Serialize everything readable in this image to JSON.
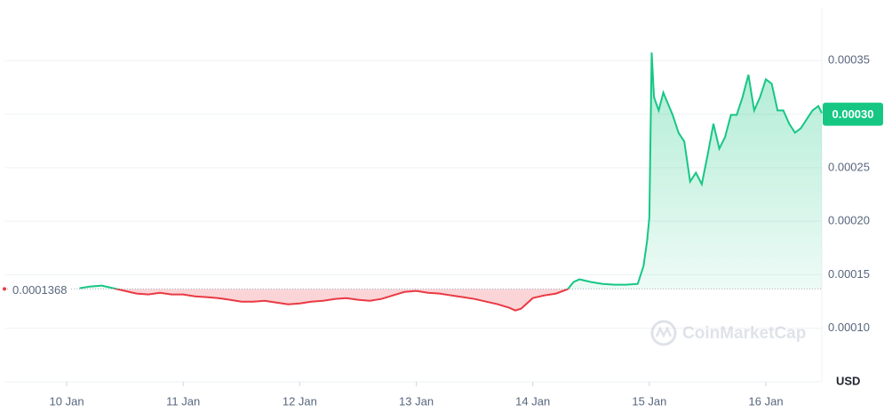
{
  "chart_data": {
    "type": "baseline-line",
    "x": [
      10.11,
      10.2,
      10.3,
      10.4,
      10.5,
      10.6,
      10.7,
      10.8,
      10.9,
      11.0,
      11.1,
      11.2,
      11.3,
      11.4,
      11.5,
      11.6,
      11.7,
      11.8,
      11.9,
      12.0,
      12.1,
      12.2,
      12.3,
      12.4,
      12.5,
      12.6,
      12.7,
      12.8,
      12.9,
      13.0,
      13.1,
      13.2,
      13.3,
      13.4,
      13.5,
      13.6,
      13.7,
      13.8,
      13.85,
      13.9,
      14.0,
      14.1,
      14.2,
      14.3,
      14.35,
      14.4,
      14.5,
      14.6,
      14.7,
      14.8,
      14.9,
      14.95,
      14.98,
      15.0,
      15.02,
      15.04,
      15.08,
      15.12,
      15.2,
      15.25,
      15.3,
      15.35,
      15.4,
      15.45,
      15.5,
      15.55,
      15.6,
      15.65,
      15.7,
      15.75,
      15.8,
      15.85,
      15.9,
      15.95,
      16.0,
      16.05,
      16.1,
      16.15,
      16.2,
      16.25,
      16.3,
      16.35,
      16.4,
      16.45,
      16.48
    ],
    "values": [
      0.0001374,
      0.000139,
      0.0001399,
      0.0001374,
      0.0001349,
      0.0001324,
      0.0001316,
      0.0001332,
      0.0001316,
      0.0001316,
      0.0001299,
      0.0001291,
      0.0001282,
      0.0001266,
      0.0001249,
      0.0001249,
      0.0001257,
      0.0001241,
      0.0001224,
      0.0001232,
      0.0001249,
      0.0001257,
      0.0001274,
      0.0001282,
      0.0001266,
      0.0001257,
      0.0001274,
      0.0001307,
      0.000134,
      0.0001349,
      0.0001332,
      0.0001324,
      0.0001307,
      0.0001291,
      0.0001274,
      0.0001249,
      0.0001224,
      0.0001191,
      0.0001166,
      0.0001183,
      0.0001282,
      0.0001307,
      0.0001324,
      0.0001366,
      0.0001432,
      0.0001457,
      0.0001432,
      0.0001415,
      0.0001407,
      0.0001407,
      0.0001415,
      0.0001581,
      0.0001814,
      0.0002038,
      0.0003575,
      0.000316,
      0.0003035,
      0.0003201,
      0.0002993,
      0.0002827,
      0.0002744,
      0.000237,
      0.0002453,
      0.0002345,
      0.000262,
      0.000291,
      0.0002678,
      0.0002786,
      0.0002993,
      0.0002993,
      0.000316,
      0.0003367,
      0.0003035,
      0.000316,
      0.0003326,
      0.0003284,
      0.0003035,
      0.0003035,
      0.000291,
      0.0002827,
      0.0002869,
      0.0002952,
      0.0003035,
      0.0003076,
      0.000301
    ],
    "baseline": 0.0001368,
    "up_color": "#16c784",
    "down_color": "#ea3943",
    "last_price": {
      "value": 0.0003,
      "label": "0.00030"
    },
    "xlim": [
      9.466,
      16.48
    ],
    "xticks": [
      {
        "value": 10,
        "label": "10 Jan"
      },
      {
        "value": 11,
        "label": "11 Jan"
      },
      {
        "value": 12,
        "label": "12 Jan"
      },
      {
        "value": 13,
        "label": "13 Jan"
      },
      {
        "value": 14,
        "label": "14 Jan"
      },
      {
        "value": 15,
        "label": "15 Jan"
      },
      {
        "value": 16,
        "label": "16 Jan"
      }
    ],
    "ylim": [
      5e-05,
      0.0004
    ],
    "yticks": [
      {
        "value": 0.0001,
        "label": "0.00010"
      },
      0.00015,
      {
        "value": 0.0002,
        "label": "0.00020"
      },
      0.00025,
      {
        "value": 0.0003,
        "label": "0.00030"
      },
      0.00035
    ],
    "grid": true,
    "currency_label": "USD",
    "watermark": "CoinMarketCap"
  }
}
